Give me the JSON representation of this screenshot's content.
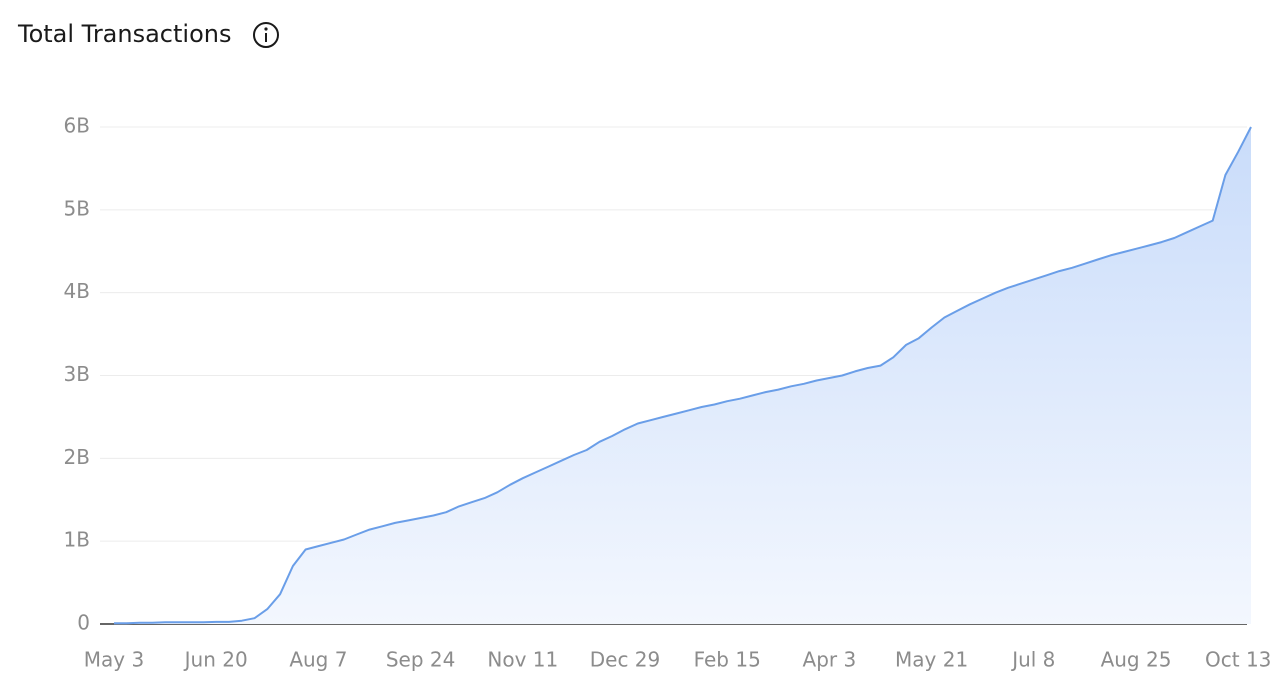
{
  "chart_data": {
    "type": "area",
    "title": "Total Transactions",
    "categories": [
      "May 3",
      null,
      null,
      null,
      null,
      null,
      null,
      null,
      "Jun 20",
      null,
      null,
      null,
      null,
      null,
      null,
      null,
      "Aug 7",
      null,
      null,
      null,
      null,
      null,
      null,
      null,
      "Sep 24",
      null,
      null,
      null,
      null,
      null,
      null,
      null,
      "Nov 11",
      null,
      null,
      null,
      null,
      null,
      null,
      null,
      "Dec 29",
      null,
      null,
      null,
      null,
      null,
      null,
      null,
      "Feb 15",
      null,
      null,
      null,
      null,
      null,
      null,
      null,
      "Apr 3",
      null,
      null,
      null,
      null,
      null,
      null,
      null,
      "May 21",
      null,
      null,
      null,
      null,
      null,
      null,
      null,
      "Jul 8",
      null,
      null,
      null,
      null,
      null,
      null,
      null,
      "Aug 25",
      null,
      null,
      null,
      null,
      null,
      null,
      null,
      "Oct 13",
      null
    ],
    "values": [
      0.01,
      0.01,
      0.015,
      0.015,
      0.02,
      0.02,
      0.02,
      0.02,
      0.025,
      0.025,
      0.04,
      0.07,
      0.18,
      0.36,
      0.7,
      0.9,
      0.94,
      0.98,
      1.02,
      1.08,
      1.14,
      1.18,
      1.22,
      1.25,
      1.28,
      1.31,
      1.35,
      1.42,
      1.47,
      1.52,
      1.59,
      1.68,
      1.76,
      1.83,
      1.9,
      1.97,
      2.04,
      2.1,
      2.2,
      2.27,
      2.35,
      2.42,
      2.46,
      2.5,
      2.54,
      2.58,
      2.62,
      2.65,
      2.69,
      2.72,
      2.76,
      2.8,
      2.83,
      2.87,
      2.9,
      2.94,
      2.97,
      3.0,
      3.05,
      3.09,
      3.12,
      3.22,
      3.37,
      3.45,
      3.58,
      3.7,
      3.78,
      3.86,
      3.93,
      4.0,
      4.06,
      4.11,
      4.16,
      4.21,
      4.26,
      4.3,
      4.35,
      4.4,
      4.45,
      4.49,
      4.53,
      4.57,
      4.61,
      4.66,
      4.73,
      4.8,
      4.87,
      5.42,
      5.7,
      6.0
    ],
    "color": "#6a9ee8",
    "ylim": [
      0,
      6
    ],
    "yticks": [
      0,
      {
        "value": 1,
        "label": "1B"
      },
      {
        "value": 2,
        "label": "2B"
      },
      {
        "value": 3,
        "label": "3B"
      },
      {
        "value": 4,
        "label": "4B"
      },
      {
        "value": 5,
        "label": "5B"
      },
      {
        "value": 6,
        "label": "6B"
      }
    ],
    "grid": true
  }
}
